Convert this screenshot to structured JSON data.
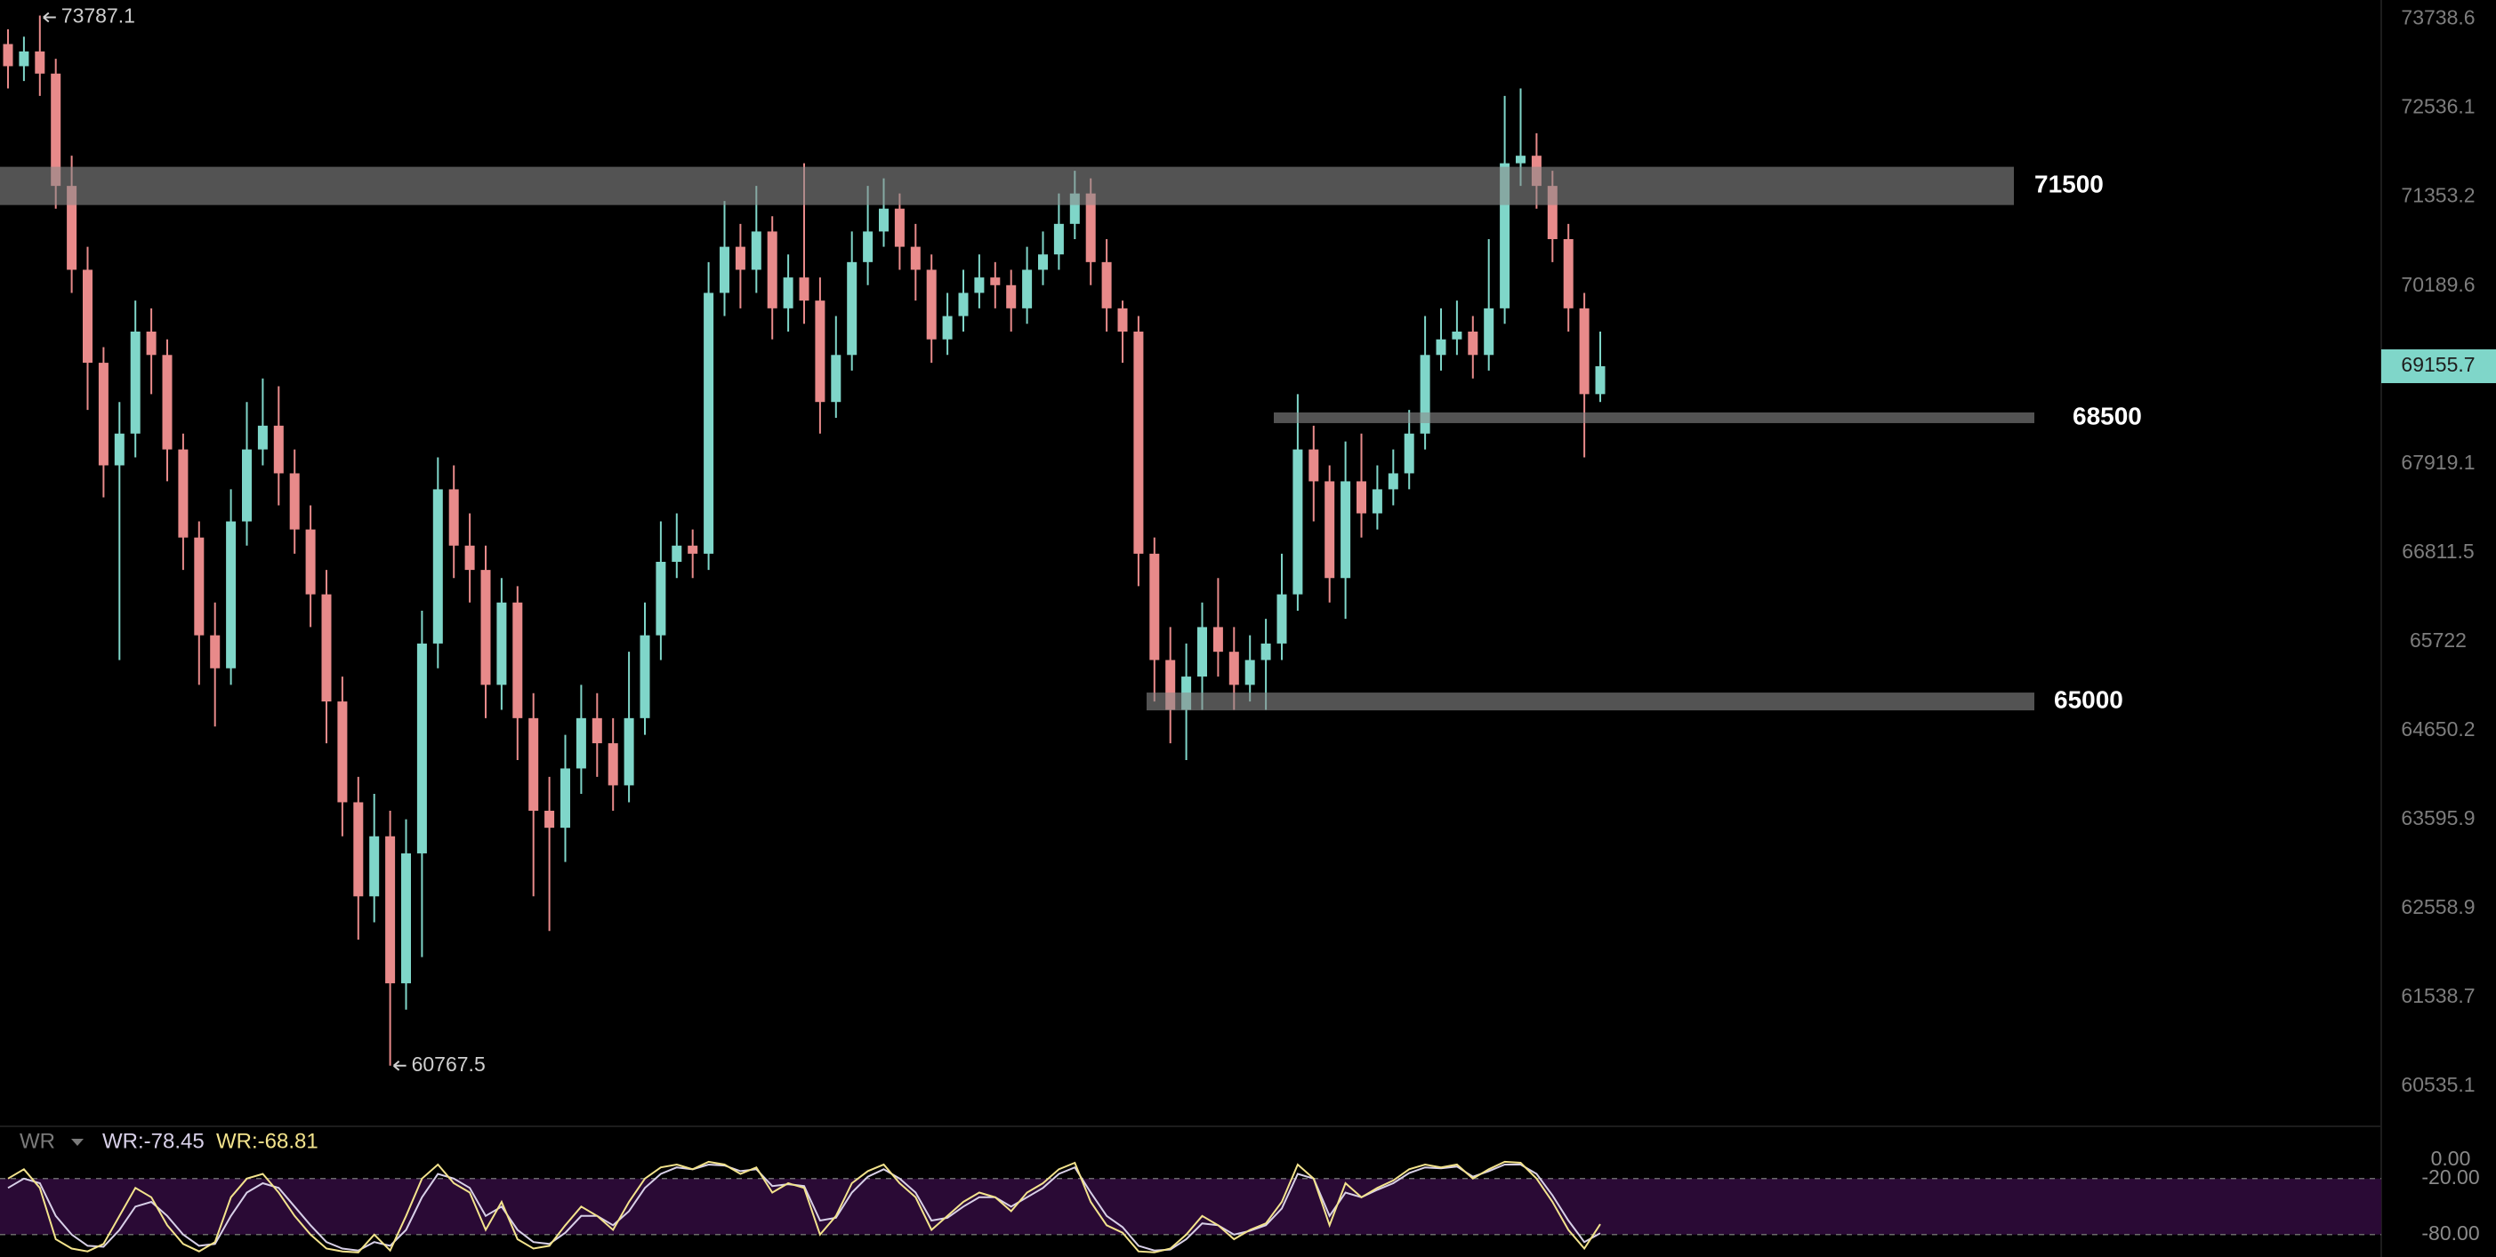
{
  "chart_data": [
    {
      "type": "candlestick",
      "log_scale": true,
      "grid": false,
      "up_color": "#7fd6c9",
      "down_color": "#e88a8a",
      "level_color": "#8a8a8a",
      "last_color": "#7fd6c9",
      "ylim": [
        60110,
        74000
      ],
      "yticks": [
        73738.6,
        72536.1,
        71353.2,
        70189.6,
        67919.1,
        66811.5,
        65722.0,
        64650.2,
        63595.9,
        62558.9,
        61538.7,
        60535.1
      ],
      "levels": [
        71500,
        68500,
        65000
      ],
      "open": [
        73400,
        73100,
        73300,
        73000,
        71500,
        70400,
        69200,
        67900,
        68300,
        69600,
        69300,
        68100,
        67000,
        65800,
        65400,
        67200,
        68100,
        68400,
        67800,
        67100,
        66300,
        65000,
        63800,
        62700,
        63400,
        61700,
        63200,
        65700,
        67600,
        66900,
        66600,
        65200,
        66200,
        64800,
        63700,
        63500,
        64200,
        64800,
        64500,
        64000,
        64800,
        65800,
        66700,
        66900,
        66800,
        70100,
        70700,
        70400,
        70900,
        69900,
        70300,
        70000,
        68700,
        69300,
        70500,
        70900,
        71200,
        70700,
        70400,
        69500,
        69800,
        70100,
        70300,
        70200,
        69900,
        70400,
        70600,
        71000,
        71400,
        70500,
        69900,
        69600,
        66800,
        65500,
        64900,
        65300,
        65900,
        65600,
        65200,
        65500,
        65700,
        66300,
        68100,
        67700,
        66500,
        67700,
        67300,
        67600,
        67800,
        68300,
        69300,
        69500,
        69600,
        69300,
        69900,
        71800,
        71900,
        71500,
        70800,
        69900,
        68800
      ],
      "high": [
        73600,
        73500,
        73787.1,
        73200,
        71900,
        70700,
        69400,
        68700,
        70000,
        69900,
        69500,
        68300,
        67200,
        66200,
        67600,
        68700,
        69000,
        68900,
        68100,
        67400,
        66600,
        65300,
        64100,
        63900,
        63700,
        63600,
        66100,
        68000,
        67900,
        67300,
        66900,
        66500,
        66400,
        65100,
        64100,
        64600,
        65200,
        65100,
        64800,
        65600,
        66200,
        67200,
        67300,
        67100,
        70500,
        71300,
        71000,
        71500,
        71100,
        70600,
        71800,
        70300,
        69800,
        70900,
        71500,
        71600,
        71400,
        71000,
        70600,
        70100,
        70400,
        70600,
        70500,
        70400,
        70700,
        70900,
        71400,
        71700,
        71600,
        70800,
        70000,
        69800,
        67000,
        65900,
        65700,
        66200,
        66500,
        65900,
        65800,
        66000,
        66800,
        68800,
        68400,
        67900,
        68200,
        68300,
        67900,
        68100,
        68600,
        69800,
        69900,
        70000,
        69800,
        70800,
        72700,
        72800,
        72200,
        71700,
        71000,
        70100,
        69600
      ],
      "low": [
        72800,
        72900,
        72700,
        71200,
        70100,
        68600,
        67500,
        65500,
        68000,
        68800,
        67700,
        66600,
        65200,
        64700,
        65200,
        66900,
        67900,
        67400,
        66800,
        65900,
        64500,
        63400,
        62200,
        62400,
        60767.5,
        61400,
        62000,
        65400,
        66500,
        66200,
        64800,
        64900,
        64300,
        62700,
        62300,
        63100,
        63900,
        64100,
        63700,
        63800,
        64600,
        65500,
        66500,
        66500,
        66600,
        69800,
        69900,
        70100,
        69500,
        69600,
        69700,
        68300,
        68500,
        69100,
        70200,
        70700,
        70400,
        70000,
        69200,
        69300,
        69600,
        69900,
        69900,
        69600,
        69700,
        70200,
        70400,
        70800,
        70200,
        69600,
        69200,
        66400,
        65000,
        64500,
        64300,
        64900,
        65300,
        64900,
        65000,
        64900,
        65500,
        66100,
        67200,
        66200,
        66000,
        67000,
        67100,
        67400,
        67600,
        68100,
        69100,
        69300,
        69000,
        69100,
        69700,
        71500,
        71200,
        70500,
        69600,
        68000,
        68700
      ],
      "close": [
        73100,
        73300,
        73000,
        71500,
        70400,
        69200,
        67900,
        68300,
        69600,
        69300,
        68100,
        67000,
        65800,
        65400,
        67200,
        68100,
        68400,
        67800,
        67100,
        66300,
        65000,
        63800,
        62700,
        63400,
        61700,
        63200,
        65700,
        67600,
        66900,
        66600,
        65200,
        66200,
        64800,
        63700,
        63500,
        64200,
        64800,
        64500,
        64000,
        64800,
        65800,
        66700,
        66900,
        66800,
        70100,
        70700,
        70400,
        70900,
        69900,
        70300,
        70000,
        68700,
        69300,
        70500,
        70900,
        71200,
        70700,
        70400,
        69500,
        69800,
        70100,
        70300,
        70200,
        69900,
        70400,
        70600,
        71000,
        71400,
        70500,
        69900,
        69600,
        66800,
        65500,
        64900,
        65300,
        65900,
        65600,
        65200,
        65500,
        65700,
        66300,
        68100,
        67700,
        66500,
        67700,
        67300,
        67600,
        67800,
        68300,
        69300,
        69500,
        69600,
        69300,
        69900,
        71800,
        71900,
        71500,
        70800,
        69900,
        68800,
        69155.7
      ]
    },
    {
      "type": "line",
      "title": "WR",
      "band_color": "#2a0a35",
      "ylim": [
        -104,
        36
      ],
      "yticks": [
        {
          "value": 0,
          "label": "0.00"
        },
        {
          "value": -20,
          "label": "-20.00"
        },
        {
          "value": -80,
          "label": "-80.00"
        }
      ],
      "series": [
        {
          "name": "WR:-78.45",
          "color": "#d8d0e8",
          "values": [
            -30,
            -20,
            -25,
            -60,
            -80,
            -92,
            -93,
            -75,
            -50,
            -45,
            -60,
            -80,
            -92,
            -90,
            -60,
            -35,
            -25,
            -30,
            -50,
            -70,
            -88,
            -95,
            -97,
            -88,
            -92,
            -75,
            -40,
            -15,
            -20,
            -30,
            -60,
            -50,
            -75,
            -88,
            -90,
            -78,
            -60,
            -60,
            -70,
            -55,
            -30,
            -15,
            -8,
            -10,
            -5,
            -6,
            -12,
            -10,
            -28,
            -26,
            -28,
            -65,
            -62,
            -35,
            -18,
            -10,
            -20,
            -35,
            -65,
            -62,
            -50,
            -40,
            -40,
            -50,
            -40,
            -30,
            -15,
            -8,
            -35,
            -60,
            -72,
            -92,
            -97,
            -96,
            -85,
            -68,
            -70,
            -80,
            -76,
            -70,
            -52,
            -15,
            -20,
            -60,
            -35,
            -40,
            -32,
            -25,
            -14,
            -8,
            -9,
            -7,
            -18,
            -12,
            -5,
            -5,
            -15,
            -38,
            -65,
            -88,
            -78.45
          ]
        },
        {
          "name": "WR:-68.81",
          "color": "#f3e38c",
          "values": [
            -20,
            -10,
            -30,
            -85,
            -95,
            -98,
            -90,
            -60,
            -30,
            -40,
            -70,
            -90,
            -98,
            -88,
            -40,
            -20,
            -15,
            -35,
            -60,
            -80,
            -95,
            -98,
            -99,
            -80,
            -97,
            -60,
            -20,
            -5,
            -25,
            -35,
            -75,
            -45,
            -85,
            -95,
            -92,
            -70,
            -50,
            -60,
            -75,
            -45,
            -20,
            -8,
            -5,
            -10,
            -2,
            -5,
            -15,
            -8,
            -35,
            -25,
            -30,
            -80,
            -60,
            -25,
            -12,
            -5,
            -25,
            -40,
            -75,
            -60,
            -45,
            -35,
            -40,
            -55,
            -35,
            -25,
            -10,
            -3,
            -45,
            -70,
            -78,
            -98,
            -99,
            -95,
            -80,
            -60,
            -70,
            -85,
            -75,
            -68,
            -45,
            -5,
            -20,
            -70,
            -25,
            -40,
            -30,
            -22,
            -10,
            -5,
            -8,
            -5,
            -20,
            -10,
            -2,
            -3,
            -20,
            -45,
            -75,
            -95,
            -68.81
          ]
        }
      ]
    }
  ]
}
